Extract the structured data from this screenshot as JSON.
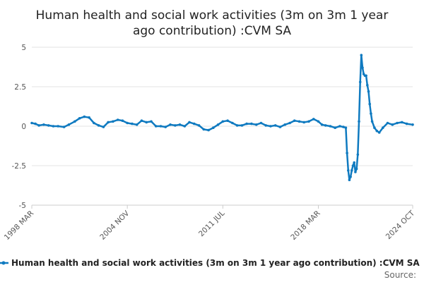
{
  "chart_data": {
    "type": "line",
    "title_line1": "Human health and social work activities (3m on 3m 1 year",
    "title_line2": "ago contribution) :CVM SA",
    "xlabel": "",
    "ylabel": "",
    "ylim": [
      -5,
      5
    ],
    "yticks": [
      {
        "value": 5,
        "label": "5"
      },
      {
        "value": 2.5,
        "label": "2.5"
      },
      {
        "value": 0,
        "label": "0"
      },
      {
        "value": -2.5,
        "label": "-2.5"
      },
      {
        "value": -5,
        "label": "-5"
      }
    ],
    "xlim": [
      "1998-03",
      "2024-10"
    ],
    "xticks": [
      {
        "date": "1998-03",
        "label": "1998 MAR"
      },
      {
        "date": "2004-11",
        "label": "2004 NOV"
      },
      {
        "date": "2011-07",
        "label": "2011 JUL"
      },
      {
        "date": "2018-03",
        "label": "2018 MAR"
      },
      {
        "date": "2024-10",
        "label": "2024 OCT"
      }
    ],
    "grid": "horizontal",
    "legend_position": "bottom",
    "series": [
      {
        "name": "Human health and social work activities (3m on 3m 1 year ago contribution) :CVM SA",
        "color": "#0f7ac0",
        "points": [
          [
            "1998-03",
            0.2
          ],
          [
            "1998-06",
            0.15
          ],
          [
            "1998-09",
            0.05
          ],
          [
            "1999-01",
            0.1
          ],
          [
            "1999-05",
            0.05
          ],
          [
            "1999-09",
            0.0
          ],
          [
            "2000-01",
            0.0
          ],
          [
            "2000-06",
            -0.05
          ],
          [
            "2000-10",
            0.1
          ],
          [
            "2001-03",
            0.3
          ],
          [
            "2001-07",
            0.5
          ],
          [
            "2001-11",
            0.6
          ],
          [
            "2002-03",
            0.55
          ],
          [
            "2002-07",
            0.2
          ],
          [
            "2002-11",
            0.05
          ],
          [
            "2003-03",
            -0.05
          ],
          [
            "2003-07",
            0.25
          ],
          [
            "2003-11",
            0.3
          ],
          [
            "2004-03",
            0.4
          ],
          [
            "2004-07",
            0.35
          ],
          [
            "2004-11",
            0.2
          ],
          [
            "2005-03",
            0.15
          ],
          [
            "2005-07",
            0.1
          ],
          [
            "2005-11",
            0.35
          ],
          [
            "2006-03",
            0.25
          ],
          [
            "2006-07",
            0.3
          ],
          [
            "2006-11",
            0.0
          ],
          [
            "2007-03",
            0.0
          ],
          [
            "2007-07",
            -0.05
          ],
          [
            "2007-11",
            0.1
          ],
          [
            "2008-03",
            0.05
          ],
          [
            "2008-07",
            0.1
          ],
          [
            "2008-11",
            0.0
          ],
          [
            "2009-03",
            0.25
          ],
          [
            "2009-07",
            0.15
          ],
          [
            "2009-11",
            0.05
          ],
          [
            "2010-03",
            -0.2
          ],
          [
            "2010-07",
            -0.25
          ],
          [
            "2010-11",
            -0.1
          ],
          [
            "2011-03",
            0.1
          ],
          [
            "2011-07",
            0.3
          ],
          [
            "2011-11",
            0.35
          ],
          [
            "2012-03",
            0.2
          ],
          [
            "2012-07",
            0.05
          ],
          [
            "2012-11",
            0.05
          ],
          [
            "2013-03",
            0.15
          ],
          [
            "2013-07",
            0.15
          ],
          [
            "2013-11",
            0.1
          ],
          [
            "2014-03",
            0.2
          ],
          [
            "2014-07",
            0.05
          ],
          [
            "2014-11",
            0.0
          ],
          [
            "2015-03",
            0.05
          ],
          [
            "2015-07",
            -0.05
          ],
          [
            "2015-11",
            0.1
          ],
          [
            "2016-03",
            0.2
          ],
          [
            "2016-07",
            0.35
          ],
          [
            "2016-11",
            0.3
          ],
          [
            "2017-03",
            0.25
          ],
          [
            "2017-07",
            0.3
          ],
          [
            "2017-11",
            0.45
          ],
          [
            "2018-03",
            0.3
          ],
          [
            "2018-06",
            0.1
          ],
          [
            "2018-09",
            0.05
          ],
          [
            "2019-01",
            0.0
          ],
          [
            "2019-05",
            -0.1
          ],
          [
            "2019-09",
            0.0
          ],
          [
            "2019-12",
            -0.05
          ],
          [
            "2020-02",
            -0.1
          ],
          [
            "2020-03",
            -1.7
          ],
          [
            "2020-04",
            -2.8
          ],
          [
            "2020-05",
            -3.4
          ],
          [
            "2020-06",
            -3.2
          ],
          [
            "2020-07",
            -2.8
          ],
          [
            "2020-08",
            -2.5
          ],
          [
            "2020-09",
            -2.3
          ],
          [
            "2020-10",
            -2.9
          ],
          [
            "2020-11",
            -2.7
          ],
          [
            "2020-12",
            -1.8
          ],
          [
            "2021-01",
            0.3
          ],
          [
            "2021-02",
            2.8
          ],
          [
            "2021-03",
            4.5
          ],
          [
            "2021-04",
            3.7
          ],
          [
            "2021-05",
            3.3
          ],
          [
            "2021-06",
            3.2
          ],
          [
            "2021-07",
            3.2
          ],
          [
            "2021-08",
            2.6
          ],
          [
            "2021-09",
            2.2
          ],
          [
            "2021-10",
            1.4
          ],
          [
            "2021-11",
            0.8
          ],
          [
            "2021-12",
            0.3
          ],
          [
            "2022-02",
            -0.1
          ],
          [
            "2022-04",
            -0.3
          ],
          [
            "2022-06",
            -0.4
          ],
          [
            "2022-09",
            -0.1
          ],
          [
            "2023-01",
            0.2
          ],
          [
            "2023-05",
            0.1
          ],
          [
            "2023-09",
            0.2
          ],
          [
            "2024-01",
            0.25
          ],
          [
            "2024-05",
            0.15
          ],
          [
            "2024-10",
            0.1
          ]
        ]
      }
    ],
    "source_text": "Source:"
  }
}
